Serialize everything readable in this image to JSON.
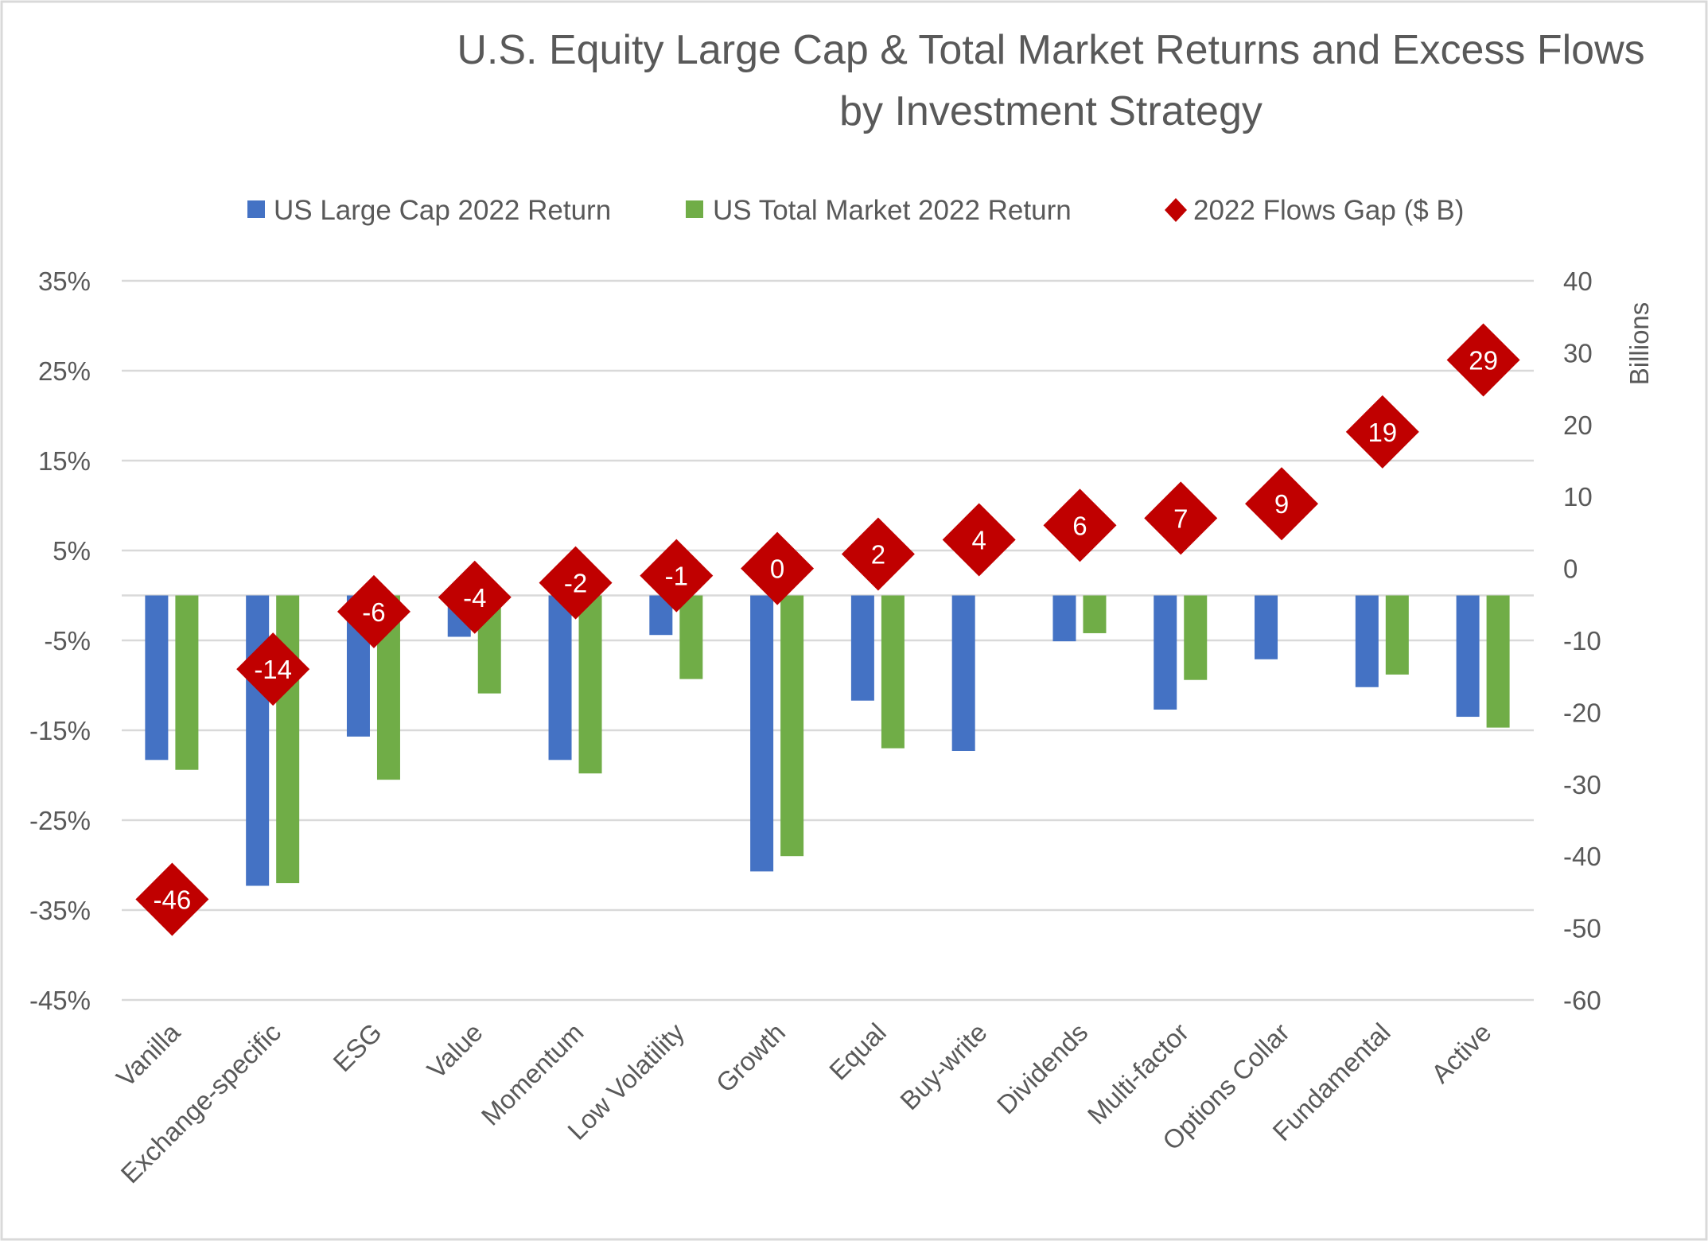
{
  "chart_data": {
    "type": "bar",
    "title": [
      "U.S. Equity Large Cap & Total Market Returns and Excess Flows",
      "by Investment Strategy"
    ],
    "categories": [
      "Vanilla",
      "Exchange-specific",
      "ESG",
      "Value",
      "Momentum",
      "Low Volatility",
      "Growth",
      "Equal",
      "Buy-write",
      "Dividends",
      "Multi-factor",
      "Options Collar",
      "Fundamental",
      "Active"
    ],
    "series": [
      {
        "name": "US Large Cap 2022 Return",
        "type": "bar",
        "axis": "left",
        "color": "#4472C4",
        "values": [
          -18.3,
          -32.3,
          -15.7,
          -4.6,
          -18.3,
          -4.4,
          -30.7,
          -11.7,
          -17.3,
          -5.1,
          -12.7,
          -7.1,
          -10.2,
          -13.5
        ]
      },
      {
        "name": "US Total Market 2022 Return",
        "type": "bar",
        "axis": "left",
        "color": "#70AD47",
        "values": [
          -19.4,
          -32.0,
          -20.5,
          -10.9,
          -19.8,
          -9.3,
          -29.0,
          -17.0,
          null,
          -4.2,
          -9.4,
          null,
          -8.8,
          -14.7
        ]
      },
      {
        "name": "2022 Flows Gap ($ B)",
        "type": "scatter",
        "marker": "diamond",
        "axis": "right",
        "color": "#C00000",
        "values": [
          -46,
          -14,
          -6,
          -4,
          -2,
          -1,
          0,
          2,
          4,
          6,
          7,
          9,
          19,
          29
        ]
      }
    ],
    "y_left": {
      "ylim": [
        -45,
        35
      ],
      "ticks": [
        "35%",
        "25%",
        "15%",
        "5%",
        "-5%",
        "-15%",
        "-25%",
        "-35%",
        "-45%"
      ],
      "tick_values": [
        35,
        25,
        15,
        5,
        -5,
        -15,
        -25,
        -35,
        -45
      ]
    },
    "y_right": {
      "ylim": [
        -60,
        40
      ],
      "label": "Billions",
      "ticks": [
        "40",
        "30",
        "20",
        "10",
        "0",
        "-10",
        "-20",
        "-30",
        "-40",
        "-50",
        "-60"
      ],
      "tick_values": [
        40,
        30,
        20,
        10,
        0,
        -10,
        -20,
        -30,
        -40,
        -50,
        -60
      ]
    },
    "grid": true,
    "legend_position": "top"
  }
}
